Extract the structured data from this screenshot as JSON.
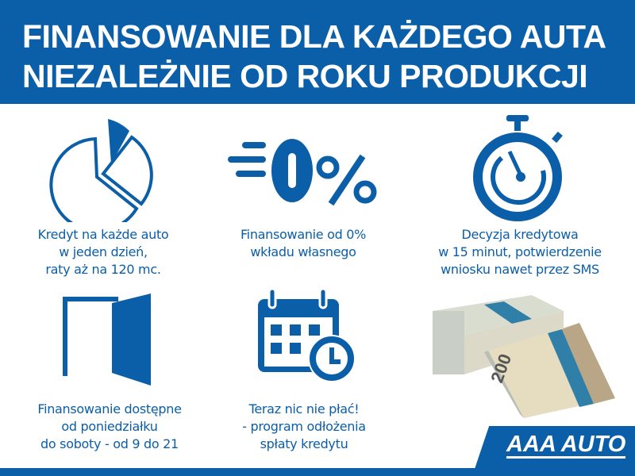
{
  "header": {
    "line1": "FINANSOWANIE DLA KAŻDEGO AUTA",
    "line2": "NIEZALEŻNIE OD ROKU PRODUKCJI"
  },
  "features": [
    {
      "icon": "pie-chart-icon",
      "lines": [
        "Kredyt na każde auto",
        "w jeden dzień,",
        "raty aż na 120 mc."
      ]
    },
    {
      "icon": "zero-percent-icon",
      "lines": [
        "Finansowanie od 0%",
        "wkładu własnego"
      ]
    },
    {
      "icon": "stopwatch-icon",
      "lines": [
        "Decyzja kredytowa",
        "w 15 minut, potwierdzenie",
        "wniosku nawet przez SMS"
      ]
    },
    {
      "icon": "open-door-icon",
      "lines": [
        "Finansowanie dostępne",
        "od poniedziałku",
        "do soboty - od 9 do 21"
      ]
    },
    {
      "icon": "calendar-clock-icon",
      "lines": [
        "Teraz nic nie płać!",
        "- program odłożenia",
        "spłaty kredytu"
      ]
    }
  ],
  "logo": {
    "text": "AAA AUTO"
  },
  "colors": {
    "brand_blue": "#0b5ea8",
    "background": "#ffffff"
  }
}
